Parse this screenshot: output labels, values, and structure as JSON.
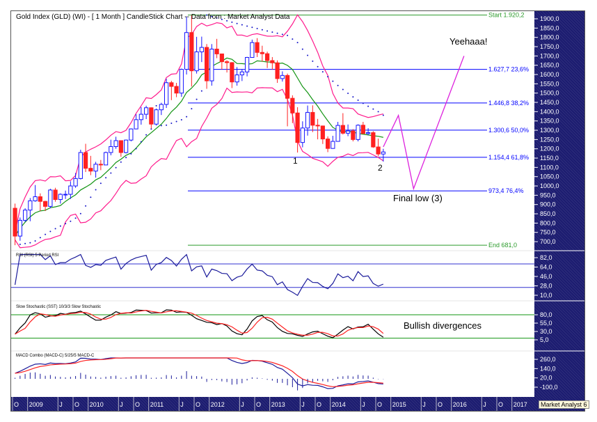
{
  "title": "Gold Index (GLD) (WI) -  [ 1 Month ] CandleStick Chart -- Data from : Market Analyst Data",
  "watermark": "Market Analyst 6",
  "colors": {
    "up": "#1414ff",
    "down": "#ff2020",
    "bands": "#ff1a8c",
    "ma": "#129412",
    "psar": "#1414c8",
    "fib": "#0000ff",
    "fib_end": "#2a9a2a",
    "projection": "#dd22dd",
    "axis_bg": "#1c1c70"
  },
  "annotations": {
    "yeehaa": "Yeehaaa!",
    "wave1": "1",
    "wave2": "2",
    "final_low": "Final low (3)",
    "bullish": "Bullish divergences"
  },
  "chart_data": [
    {
      "type": "candlestick",
      "title": "Gold Index (GLD) (WI) -  [ 1 Month ] CandleStick Chart -- Data from : Market Analyst Data",
      "start": "2008-10",
      "interval": "1 Month",
      "ylim": [
        660,
        1930
      ],
      "y_ticks": [
        "1900,0",
        "1850,0",
        "1800,0",
        "1750,0",
        "1700,0",
        "1650,0",
        "1600,0",
        "1550,0",
        "1500,0",
        "1450,0",
        "1400,0",
        "1350,0",
        "1300,0",
        "1250,0",
        "1200,0",
        "1150,0",
        "1100,0",
        "1050,0",
        "1000,0",
        "950,0",
        "900,0",
        "850,0",
        "800,0",
        "750,0",
        "700,0"
      ],
      "y_tick_values": [
        1900,
        1850,
        1800,
        1750,
        1700,
        1650,
        1600,
        1550,
        1500,
        1450,
        1400,
        1350,
        1300,
        1250,
        1200,
        1150,
        1100,
        1050,
        1000,
        950,
        900,
        850,
        800,
        750,
        700
      ],
      "open": [
        880,
        730,
        815,
        870,
        920,
        942,
        917,
        890,
        978,
        927,
        955,
        955,
        1000,
        1040,
        1180,
        1095,
        1080,
        1117,
        1113,
        1180,
        1212,
        1244,
        1180,
        1247,
        1307,
        1357,
        1386,
        1421,
        1333,
        1410,
        1439,
        1556,
        1536,
        1500,
        1628,
        1826,
        1620,
        1722,
        1746,
        1566,
        1737,
        1711,
        1669,
        1664,
        1560,
        1598,
        1614,
        1692,
        1772,
        1719,
        1712,
        1675,
        1663,
        1578,
        1595,
        1472,
        1393,
        1234,
        1312,
        1396,
        1327,
        1323,
        1253,
        1202,
        1240,
        1326,
        1284,
        1296,
        1250,
        1327,
        1282,
        1287,
        1210,
        1172
      ],
      "high": [
        905,
        830,
        880,
        935,
        1005,
        960,
        920,
        985,
        990,
        960,
        975,
        1025,
        1070,
        1195,
        1227,
        1162,
        1130,
        1140,
        1185,
        1249,
        1265,
        1245,
        1250,
        1310,
        1387,
        1425,
        1432,
        1423,
        1417,
        1448,
        1577,
        1566,
        1555,
        1632,
        1912,
        1920,
        1803,
        1804,
        1764,
        1764,
        1792,
        1710,
        1677,
        1667,
        1640,
        1629,
        1695,
        1788,
        1796,
        1755,
        1723,
        1694,
        1676,
        1617,
        1605,
        1488,
        1424,
        1348,
        1433,
        1434,
        1361,
        1325,
        1267,
        1270,
        1345,
        1392,
        1331,
        1306,
        1332,
        1345,
        1311,
        1295,
        1255,
        1200
      ],
      "low": [
        681,
        705,
        805,
        810,
        915,
        865,
        865,
        880,
        915,
        905,
        930,
        930,
        990,
        1035,
        1075,
        1058,
        1045,
        1085,
        1115,
        1165,
        1200,
        1157,
        1175,
        1240,
        1305,
        1330,
        1360,
        1310,
        1325,
        1382,
        1420,
        1462,
        1478,
        1480,
        1600,
        1535,
        1605,
        1667,
        1523,
        1540,
        1688,
        1627,
        1611,
        1527,
        1540,
        1565,
        1590,
        1690,
        1694,
        1670,
        1635,
        1626,
        1555,
        1562,
        1321,
        1338,
        1180,
        1208,
        1271,
        1290,
        1251,
        1226,
        1182,
        1200,
        1238,
        1277,
        1268,
        1240,
        1240,
        1280,
        1273,
        1205,
        1160,
        1131
      ],
      "close": [
        730,
        815,
        870,
        920,
        942,
        917,
        890,
        978,
        927,
        955,
        955,
        1000,
        1040,
        1180,
        1095,
        1080,
        1117,
        1113,
        1180,
        1212,
        1244,
        1180,
        1247,
        1307,
        1357,
        1386,
        1421,
        1333,
        1410,
        1439,
        1556,
        1536,
        1500,
        1628,
        1826,
        1620,
        1722,
        1746,
        1566,
        1737,
        1711,
        1669,
        1664,
        1560,
        1598,
        1614,
        1692,
        1772,
        1719,
        1712,
        1675,
        1663,
        1578,
        1595,
        1472,
        1393,
        1234,
        1312,
        1396,
        1327,
        1323,
        1253,
        1202,
        1240,
        1326,
        1284,
        1296,
        1250,
        1327,
        1282,
        1287,
        1210,
        1172,
        1183
      ],
      "fib_levels": [
        {
          "value": 1920.2,
          "label": "Start 1.920,2",
          "kind": "end"
        },
        {
          "value": 1627.7,
          "label": "1.627,7 23,6%",
          "kind": "level"
        },
        {
          "value": 1446.8,
          "label": "1.446,8 38,2%",
          "kind": "level"
        },
        {
          "value": 1300.6,
          "label": "1.300,6 50,0%",
          "kind": "level"
        },
        {
          "value": 1154.4,
          "label": "1.154,4 61,8%",
          "kind": "level"
        },
        {
          "value": 973.4,
          "label": "973,4 76,4%",
          "kind": "level"
        },
        {
          "value": 681.0,
          "label": "End 681,0",
          "kind": "end"
        }
      ],
      "projection": [
        {
          "month": "2014-11",
          "value": 1210
        },
        {
          "month": "2015-02",
          "value": 1380
        },
        {
          "month": "2015-05",
          "value": 985
        },
        {
          "month": "2016-03",
          "value": 1700
        }
      ],
      "overlays": [
        "Bollinger Bands",
        "Moving Average",
        "Parabolic SAR"
      ]
    },
    {
      "type": "line",
      "title": "RSI (RSI) 5 Period RSI",
      "ylim": [
        5,
        90
      ],
      "y_ticks": [
        "82,0",
        "64,0",
        "46,0",
        "28,0",
        "10,0"
      ],
      "y_tick_values": [
        82,
        64,
        46,
        28,
        10
      ],
      "levels": [
        70,
        25
      ]
    },
    {
      "type": "line",
      "title": "Slow Stochastic (SST) 10/3/3 Slow Stochastic",
      "ylim": [
        0,
        100
      ],
      "y_ticks": [
        "80,0",
        "55,0",
        "30,0",
        "5,0"
      ],
      "y_tick_values": [
        80,
        55,
        30,
        5
      ],
      "levels": [
        80,
        10
      ]
    },
    {
      "type": "line",
      "title": "MACD Combo (MACD-C) 5/25/5 MACD-C",
      "ylim": [
        -110,
        300
      ],
      "y_ticks": [
        "260,0",
        "140,0",
        "20,0",
        "-100,0"
      ],
      "y_tick_values": [
        260,
        140,
        20,
        -100
      ]
    }
  ],
  "time_axis": [
    {
      "label": "O",
      "m": 0
    },
    {
      "label": "2009",
      "m": 3
    },
    {
      "label": "J",
      "m": 9
    },
    {
      "label": "O",
      "m": 12
    },
    {
      "label": "2010",
      "m": 15
    },
    {
      "label": "J",
      "m": 21
    },
    {
      "label": "O",
      "m": 24
    },
    {
      "label": "2011",
      "m": 27
    },
    {
      "label": "J",
      "m": 33
    },
    {
      "label": "O",
      "m": 36
    },
    {
      "label": "2012",
      "m": 39
    },
    {
      "label": "J",
      "m": 45
    },
    {
      "label": "O",
      "m": 48
    },
    {
      "label": "2013",
      "m": 51
    },
    {
      "label": "J",
      "m": 57
    },
    {
      "label": "O",
      "m": 60
    },
    {
      "label": "2014",
      "m": 63
    },
    {
      "label": "J",
      "m": 69
    },
    {
      "label": "O",
      "m": 72
    },
    {
      "label": "2015",
      "m": 75
    },
    {
      "label": "J",
      "m": 81
    },
    {
      "label": "O",
      "m": 84
    },
    {
      "label": "2016",
      "m": 87
    },
    {
      "label": "J",
      "m": 93
    },
    {
      "label": "O",
      "m": 96
    },
    {
      "label": "2017",
      "m": 99
    }
  ]
}
